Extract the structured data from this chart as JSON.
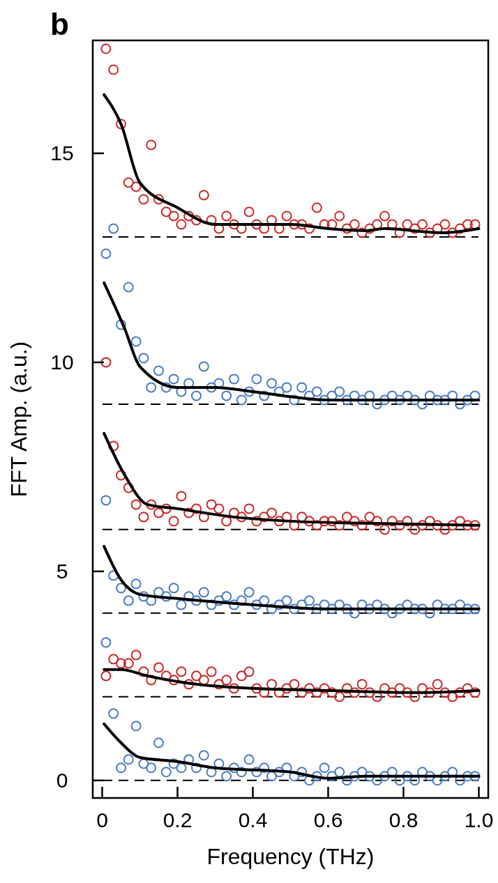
{
  "chart_data": {
    "type": "scatter",
    "title": "b",
    "xlabel": "Frequency (THz)",
    "ylabel": "FFT Amp. (a.u.)",
    "xlim": [
      -0.025,
      1.025
    ],
    "ylim": [
      -0.42,
      17.7
    ],
    "xticks": [
      0,
      0.2,
      0.4,
      0.6,
      0.8,
      {
        "value": 1,
        "label": "1.0"
      }
    ],
    "yticks": [
      0,
      5,
      10,
      15
    ],
    "marker": "circle",
    "grid": false,
    "x": [
      0.01,
      0.03,
      0.05,
      0.07,
      0.09,
      0.11,
      0.13,
      0.15,
      0.17,
      0.19,
      0.21,
      0.23,
      0.25,
      0.27,
      0.29,
      0.31,
      0.33,
      0.35,
      0.37,
      0.39,
      0.41,
      0.43,
      0.45,
      0.47,
      0.49,
      0.51,
      0.53,
      0.55,
      0.57,
      0.59,
      0.61,
      0.63,
      0.65,
      0.67,
      0.69,
      0.71,
      0.73,
      0.75,
      0.77,
      0.79,
      0.81,
      0.83,
      0.85,
      0.87,
      0.89,
      0.91,
      0.93,
      0.95,
      0.97,
      0.99
    ],
    "series": [
      {
        "color": "#cc2a2a",
        "values": [
          17.5,
          17.0,
          15.7,
          14.3,
          14.2,
          13.9,
          15.2,
          13.9,
          13.6,
          13.5,
          13.3,
          13.5,
          13.4,
          14.0,
          13.4,
          13.2,
          13.5,
          13.3,
          13.2,
          13.6,
          13.3,
          13.2,
          13.4,
          13.2,
          13.5,
          13.3,
          13.3,
          13.2,
          13.7,
          13.3,
          13.3,
          13.5,
          13.2,
          13.3,
          13.1,
          13.2,
          13.3,
          13.5,
          13.3,
          13.1,
          13.3,
          13.2,
          13.3,
          13.1,
          13.2,
          13.3,
          13.1,
          13.2,
          13.3,
          13.3
        ]
      },
      {
        "color": "#4a7cc4",
        "values": [
          12.6,
          13.2,
          10.9,
          11.8,
          10.5,
          10.1,
          9.4,
          9.8,
          9.4,
          9.6,
          9.3,
          9.5,
          9.2,
          9.9,
          9.4,
          9.5,
          9.2,
          9.6,
          9.1,
          9.3,
          9.6,
          9.2,
          9.5,
          9.3,
          9.4,
          9.1,
          9.4,
          9.2,
          9.3,
          9.1,
          9.2,
          9.3,
          9.1,
          9.2,
          9.1,
          9.2,
          9.0,
          9.1,
          9.2,
          9.1,
          9.2,
          9.1,
          9.0,
          9.2,
          9.1,
          9.1,
          9.2,
          9.0,
          9.1,
          9.2
        ]
      },
      {
        "color": "#cc2a2a",
        "values": [
          10.0,
          8.0,
          7.3,
          7.0,
          6.6,
          6.3,
          6.6,
          6.4,
          6.5,
          6.2,
          6.8,
          6.4,
          6.5,
          6.3,
          6.6,
          6.5,
          6.2,
          6.4,
          6.3,
          6.5,
          6.2,
          6.3,
          6.4,
          6.2,
          6.3,
          6.1,
          6.3,
          6.2,
          6.1,
          6.2,
          6.2,
          6.1,
          6.3,
          6.2,
          6.1,
          6.3,
          6.2,
          6.0,
          6.2,
          6.1,
          6.2,
          6.0,
          6.1,
          6.2,
          6.1,
          6.0,
          6.1,
          6.2,
          6.1,
          6.1
        ]
      },
      {
        "color": "#4a7cc4",
        "values": [
          6.7,
          4.9,
          4.6,
          4.3,
          4.7,
          4.4,
          4.3,
          4.5,
          4.4,
          4.6,
          4.2,
          4.4,
          4.3,
          4.5,
          4.2,
          4.3,
          4.4,
          4.2,
          4.3,
          4.5,
          4.2,
          4.3,
          4.1,
          4.2,
          4.3,
          4.1,
          4.2,
          4.3,
          4.1,
          4.2,
          4.1,
          4.2,
          4.1,
          4.0,
          4.2,
          4.1,
          4.2,
          4.1,
          4.0,
          4.1,
          4.2,
          4.1,
          4.1,
          4.0,
          4.2,
          4.1,
          4.1,
          4.2,
          4.1,
          4.1
        ]
      },
      {
        "color": "#cc2a2a",
        "values": [
          2.5,
          2.9,
          2.8,
          2.8,
          3.0,
          2.6,
          2.4,
          2.7,
          2.5,
          2.4,
          2.6,
          2.3,
          2.5,
          2.4,
          2.6,
          2.3,
          2.4,
          2.2,
          2.5,
          2.6,
          2.2,
          2.1,
          2.3,
          2.1,
          2.2,
          2.3,
          2.1,
          2.2,
          2.1,
          2.2,
          2.1,
          2.0,
          2.2,
          2.1,
          2.3,
          2.1,
          2.0,
          2.2,
          2.1,
          2.2,
          2.1,
          2.0,
          2.2,
          2.1,
          2.3,
          2.1,
          2.0,
          2.1,
          2.2,
          2.1
        ]
      },
      {
        "color": "#4a7cc4",
        "values": [
          3.3,
          1.6,
          0.3,
          0.5,
          1.3,
          0.4,
          0.3,
          0.9,
          0.2,
          0.4,
          0.3,
          0.5,
          0.3,
          0.6,
          0.2,
          0.4,
          0.1,
          0.3,
          0.2,
          0.5,
          0.2,
          0.3,
          0.1,
          0.2,
          0.3,
          0.1,
          0.2,
          0.0,
          0.1,
          0.3,
          0.1,
          0.2,
          0.0,
          0.1,
          0.2,
          0.1,
          0.0,
          0.1,
          0.2,
          0.0,
          0.1,
          0.0,
          0.2,
          0.1,
          0.0,
          0.1,
          0.2,
          0.0,
          0.1,
          0.1
        ]
      },
      {
        "type": "line",
        "marker": "none",
        "color": "#000000",
        "x": [
          0.005,
          0.05,
          0.1,
          0.2,
          0.3,
          0.5,
          0.6,
          0.7,
          0.75,
          0.9,
          1.0
        ],
        "values": [
          16.4,
          15.7,
          14.3,
          13.7,
          13.3,
          13.3,
          13.2,
          13.15,
          13.2,
          13.1,
          13.2
        ]
      },
      {
        "type": "line",
        "marker": "none",
        "color": "#000000",
        "x": [
          0.005,
          0.06,
          0.1,
          0.2,
          0.3,
          0.4,
          0.6,
          1.0
        ],
        "values": [
          11.9,
          10.8,
          9.9,
          9.4,
          9.4,
          9.3,
          9.1,
          9.1
        ]
      },
      {
        "type": "line",
        "marker": "none",
        "color": "#000000",
        "x": [
          0.005,
          0.06,
          0.12,
          0.2,
          0.35,
          0.5,
          0.7,
          1.0
        ],
        "values": [
          8.3,
          7.3,
          6.6,
          6.5,
          6.3,
          6.2,
          6.15,
          6.1
        ]
      },
      {
        "type": "line",
        "marker": "none",
        "color": "#000000",
        "x": [
          0.005,
          0.05,
          0.1,
          0.2,
          0.4,
          0.6,
          1.0
        ],
        "values": [
          5.6,
          4.8,
          4.45,
          4.35,
          4.2,
          4.1,
          4.1
        ]
      },
      {
        "type": "line",
        "marker": "none",
        "color": "#000000",
        "x": [
          0.005,
          0.05,
          0.12,
          0.25,
          0.4,
          0.6,
          0.85,
          1.0
        ],
        "values": [
          2.65,
          2.65,
          2.5,
          2.3,
          2.2,
          2.15,
          2.1,
          2.15
        ]
      },
      {
        "type": "line",
        "marker": "none",
        "color": "#000000",
        "x": [
          0.005,
          0.05,
          0.1,
          0.2,
          0.3,
          0.5,
          0.6,
          0.7,
          1.0
        ],
        "values": [
          1.35,
          0.9,
          0.55,
          0.45,
          0.3,
          0.2,
          0.05,
          0.1,
          0.1
        ]
      }
    ],
    "ref_lines": [
      {
        "axis": "y",
        "value": 0,
        "color": "#000000",
        "line_style": "dashed"
      },
      {
        "axis": "y",
        "value": 2,
        "color": "#000000",
        "line_style": "dashed"
      },
      {
        "axis": "y",
        "value": 4,
        "color": "#000000",
        "line_style": "dashed"
      },
      {
        "axis": "y",
        "value": 6,
        "color": "#000000",
        "line_style": "dashed"
      },
      {
        "axis": "y",
        "value": 9,
        "color": "#000000",
        "line_style": "dashed"
      },
      {
        "axis": "y",
        "value": 13,
        "color": "#000000",
        "line_style": "dashed"
      }
    ]
  }
}
